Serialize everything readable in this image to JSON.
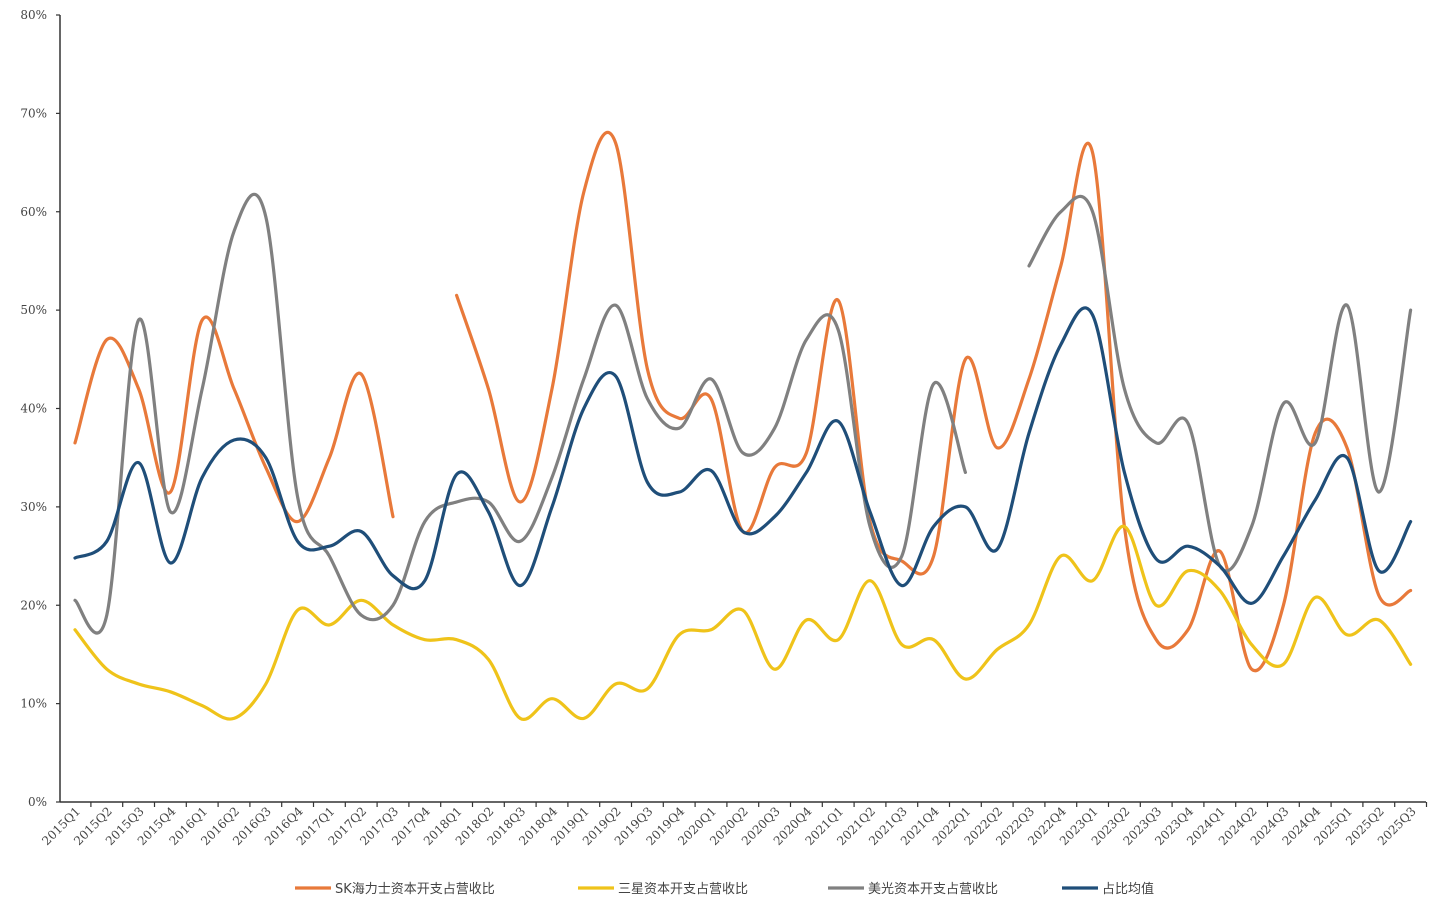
{
  "chart_data": {
    "type": "line",
    "title": "",
    "xlabel": "",
    "ylabel": "",
    "ylim": [
      0,
      80
    ],
    "yticks": [
      "0%",
      "10%",
      "20%",
      "30%",
      "40%",
      "50%",
      "60%",
      "70%",
      "80%"
    ],
    "grid": false,
    "legend_position": "bottom",
    "categories": [
      "2015Q1",
      "2015Q2",
      "2015Q3",
      "2015Q4",
      "2016Q1",
      "2016Q2",
      "2016Q3",
      "2016Q4",
      "2017Q1",
      "2017Q2",
      "2017Q3",
      "2017Q4",
      "2018Q1",
      "2018Q2",
      "2018Q3",
      "2018Q4",
      "2019Q1",
      "2019Q2",
      "2019Q3",
      "2019Q4",
      "2020Q1",
      "2020Q2",
      "2020Q3",
      "2020Q4",
      "2021Q1",
      "2021Q2",
      "2021Q3",
      "2021Q4",
      "2022Q1",
      "2022Q2",
      "2022Q3",
      "2022Q4",
      "2023Q1",
      "2023Q2",
      "2023Q3",
      "2023Q4",
      "2024Q1",
      "2024Q2",
      "2024Q3",
      "2024Q4",
      "2025Q1",
      "2025Q2",
      "2025Q3"
    ],
    "series": [
      {
        "name": "SK海力士资本开支占营收比",
        "color": "#E8793A",
        "values": [
          36.5,
          47,
          42,
          31.5,
          49,
          42,
          34,
          28.5,
          35,
          43.5,
          29,
          null,
          51.5,
          42,
          30.5,
          42,
          62,
          67,
          44,
          39,
          41,
          27.5,
          34,
          35.5,
          51,
          28.5,
          24.5,
          25,
          45,
          36,
          43,
          54.5,
          66,
          28,
          16.5,
          17.5,
          25.5,
          13.5,
          20,
          37.5,
          36,
          21,
          21.5
        ]
      },
      {
        "name": "三星资本开支占营收比",
        "color": "#EFC31A",
        "values": [
          17.5,
          13.5,
          12,
          11.2,
          9.8,
          8.5,
          12,
          19.5,
          18,
          20.5,
          18,
          16.5,
          16.5,
          14.5,
          8.5,
          10.5,
          8.5,
          12,
          11.5,
          17,
          17.5,
          19.5,
          13.5,
          18.5,
          16.5,
          22.5,
          16,
          16.5,
          12.5,
          15.5,
          18,
          25,
          22.5,
          28,
          20,
          23.5,
          21.5,
          16,
          14,
          20.8,
          17,
          18.5,
          14
        ]
      },
      {
        "name": "美光资本开支占营收比",
        "color": "#808080",
        "values": [
          20.5,
          19,
          49,
          29.5,
          42,
          58,
          59.5,
          31,
          25,
          19,
          20,
          28.5,
          30.5,
          30.5,
          26.5,
          33,
          43,
          50.5,
          41,
          38,
          43,
          35.5,
          38,
          47,
          48,
          28,
          25,
          42.5,
          33.5,
          null,
          54.5,
          60,
          60,
          42,
          36.5,
          38.5,
          24,
          28,
          40.5,
          36.5,
          50.5,
          31.5,
          50
        ]
      },
      {
        "name": "占比均值",
        "color": "#1F4E79",
        "values": [
          24.8,
          26.5,
          34.5,
          24.3,
          33,
          36.8,
          35,
          26.5,
          26,
          27.5,
          23,
          22.5,
          33.3,
          29.5,
          22,
          30,
          40,
          43.3,
          32.5,
          31.5,
          33.7,
          27.5,
          29,
          33.5,
          38.7,
          29.5,
          22,
          28,
          30,
          25.7,
          37.5,
          46.5,
          49.5,
          33.5,
          24.7,
          26,
          24,
          20.2,
          25,
          30.7,
          35,
          23.5,
          28.5
        ]
      }
    ]
  }
}
